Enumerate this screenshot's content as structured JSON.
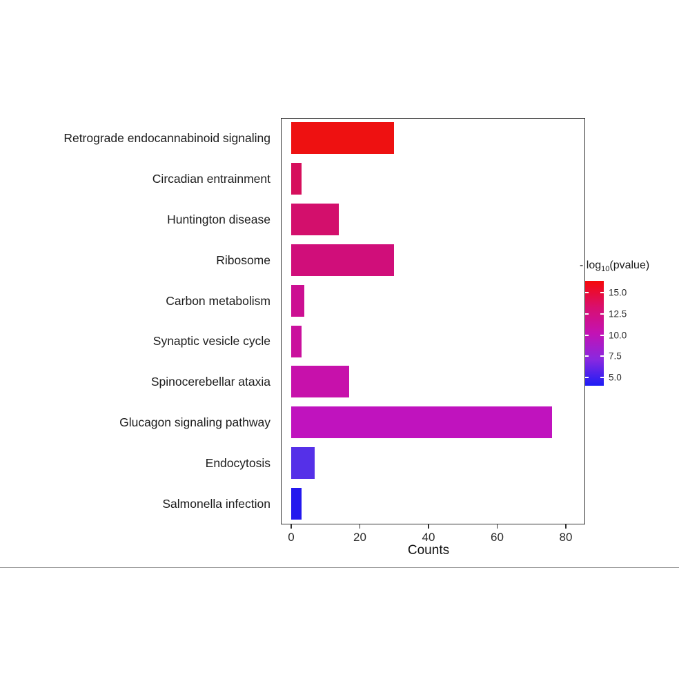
{
  "chart_data": {
    "type": "bar",
    "orientation": "horizontal",
    "title": "",
    "xlabel": "Counts",
    "xlim": [
      0,
      85
    ],
    "x_ticks": [
      0,
      20,
      40,
      60,
      80
    ],
    "grid": false,
    "legend_position": "right",
    "categories": [
      "Retrograde endocannabinoid signaling",
      "Circadian entrainment",
      "Huntington disease",
      "Ribosome",
      "Carbon metabolism",
      "Synaptic vesicle cycle",
      "Spinocerebellar ataxia",
      "Glucagon signaling pathway",
      "Endocytosis",
      "Salmonella infection"
    ],
    "values": [
      30,
      3,
      14,
      30,
      4,
      3,
      17,
      76,
      7,
      3
    ],
    "bars": [
      {
        "label": "Retrograde endocannabinoid signaling",
        "count": 30,
        "neg_log10_pvalue": 16.5,
        "color": "#ee1111"
      },
      {
        "label": "Circadian entrainment",
        "count": 3,
        "neg_log10_pvalue": 13.0,
        "color": "#d60f5c"
      },
      {
        "label": "Huntington disease",
        "count": 14,
        "neg_log10_pvalue": 12.5,
        "color": "#d30f6c"
      },
      {
        "label": "Ribosome",
        "count": 30,
        "neg_log10_pvalue": 12.2,
        "color": "#d00e7a"
      },
      {
        "label": "Carbon metabolism",
        "count": 4,
        "neg_log10_pvalue": 11.5,
        "color": "#cc0f92"
      },
      {
        "label": "Synaptic vesicle cycle",
        "count": 3,
        "neg_log10_pvalue": 11.2,
        "color": "#ca109d"
      },
      {
        "label": "Spinocerebellar ataxia",
        "count": 17,
        "neg_log10_pvalue": 10.8,
        "color": "#c711ab"
      },
      {
        "label": "Glucagon signaling pathway",
        "count": 76,
        "neg_log10_pvalue": 10.3,
        "color": "#c013be"
      },
      {
        "label": "Endocytosis",
        "count": 7,
        "neg_log10_pvalue": 6.5,
        "color": "#5530e8"
      },
      {
        "label": "Salmonella infection",
        "count": 3,
        "neg_log10_pvalue": 5.0,
        "color": "#2418ee"
      }
    ],
    "legend": {
      "title_prefix": "- log",
      "title_sub": "10",
      "title_suffix": "(pvalue)",
      "ticks": [
        {
          "label": "15.0",
          "pos": 0.112
        },
        {
          "label": "12.5",
          "pos": 0.316
        },
        {
          "label": "10.0",
          "pos": 0.52
        },
        {
          "label": "7.5",
          "pos": 0.717
        },
        {
          "label": "5.0",
          "pos": 0.921
        }
      ],
      "gradient_stops": [
        {
          "pos": 0.0,
          "color": "#f50a0a"
        },
        {
          "pos": 0.25,
          "color": "#d90f6e"
        },
        {
          "pos": 0.5,
          "color": "#c312b4"
        },
        {
          "pos": 0.75,
          "color": "#8928e0"
        },
        {
          "pos": 1.0,
          "color": "#1d1df5"
        }
      ]
    }
  }
}
